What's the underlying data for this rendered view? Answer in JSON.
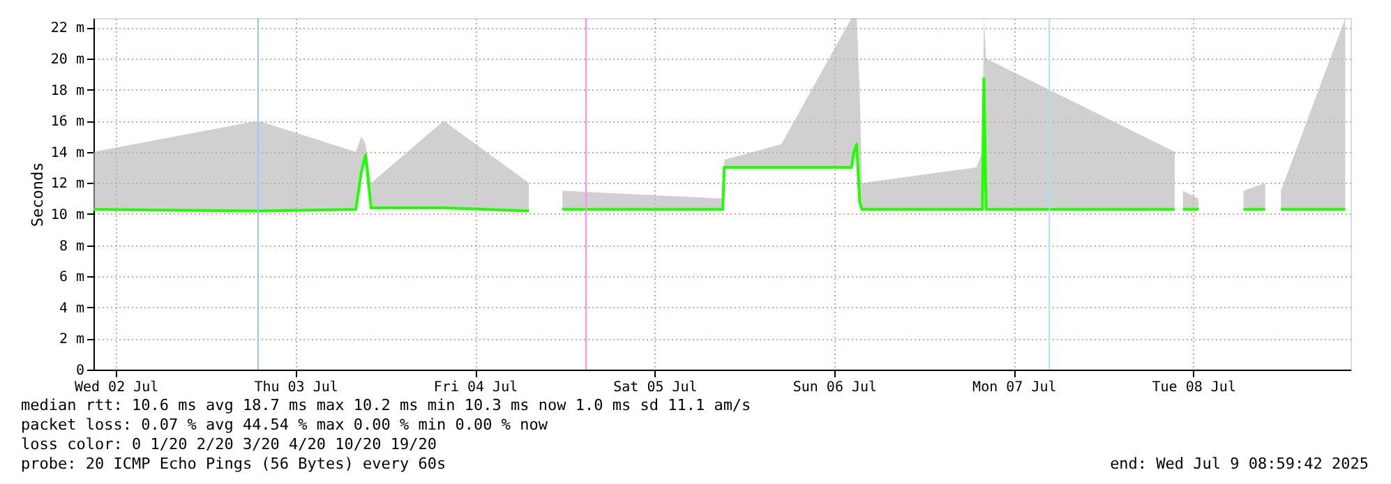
{
  "chart_data": {
    "type": "line",
    "ylabel": "Seconds",
    "x": [
      "2025-07-02T09:00",
      "2025-07-03T07:00",
      "2025-07-03T20:04",
      "2025-07-03T20:48",
      "2025-07-03T21:22",
      "2025-07-03T22:06",
      "2025-07-04T07:48",
      "2025-07-04T19:12",
      "2025-07-04T21:30",
      "2025-07-04T23:40",
      "2025-07-05T21:06",
      "2025-07-05T21:18",
      "2025-07-06T04:56",
      "2025-07-06T14:18",
      "2025-07-06T14:38",
      "2025-07-06T15:00",
      "2025-07-06T15:24",
      "2025-07-06T15:42",
      "2025-07-07T07:00",
      "2025-07-07T07:48",
      "2025-07-07T08:00",
      "2025-07-07T08:18",
      "2025-07-08T09:30",
      "2025-07-08T10:06",
      "2025-07-08T10:36",
      "2025-07-08T12:42",
      "2025-07-08T15:42",
      "2025-07-08T18:42",
      "2025-07-08T21:36",
      "2025-07-08T22:30",
      "2025-07-08T23:42",
      "2025-07-09T08:18"
    ],
    "series": [
      {
        "color": "#20ff00",
        "values": [
          10.3,
          10.2,
          10.3,
          12.7,
          13.8,
          10.4,
          10.4,
          10.2,
          null,
          10.3,
          10.3,
          13.0,
          13.0,
          13.0,
          14.0,
          14.5,
          10.8,
          10.3,
          10.3,
          10.3,
          18.7,
          10.3,
          10.3,
          null,
          10.3,
          10.3,
          null,
          10.3,
          10.3,
          null,
          10.3,
          10.3
        ],
        "lower": [
          10.3,
          10.2,
          10.3,
          12.7,
          13.8,
          10.4,
          10.4,
          10.2,
          null,
          10.3,
          10.3,
          13.0,
          13.0,
          13.0,
          14.0,
          14.5,
          10.8,
          10.3,
          10.3,
          10.3,
          18.7,
          10.3,
          10.3,
          null,
          10.3,
          10.3,
          null,
          10.3,
          10.3,
          null,
          10.3,
          10.3
        ],
        "upper": [
          14,
          16,
          14,
          15,
          14.5,
          12,
          16,
          12,
          null,
          11.5,
          11,
          13.5,
          14.5,
          22.6,
          22.6,
          22.6,
          18,
          12,
          13,
          14,
          22.6,
          20,
          14,
          null,
          11.5,
          11,
          null,
          11.5,
          12,
          null,
          11.5,
          22.6
        ]
      }
    ],
    "xlim": [
      "2025-07-02T09:00",
      "2025-07-09T09:00"
    ],
    "xticks": [
      {
        "value": "2025-07-02T12:00",
        "label": "Wed 02 Jul"
      },
      {
        "value": "2025-07-03T12:00",
        "label": "Thu 03 Jul"
      },
      {
        "value": "2025-07-04T12:00",
        "label": "Fri 04 Jul"
      },
      {
        "value": "2025-07-05T12:00",
        "label": "Sat 05 Jul"
      },
      {
        "value": "2025-07-06T12:00",
        "label": "Sun 06 Jul"
      },
      {
        "value": "2025-07-07T12:00",
        "label": "Mon 07 Jul"
      },
      {
        "value": "2025-07-08T12:00",
        "label": "Tue 08 Jul"
      }
    ],
    "ylim": [
      0,
      22.6
    ],
    "yticks": [
      0,
      {
        "value": 2,
        "label": "2 m"
      },
      {
        "value": 4,
        "label": "4 m"
      },
      {
        "value": 6,
        "label": "6 m"
      },
      {
        "value": 8,
        "label": "8 m"
      },
      {
        "value": 10,
        "label": "10 m"
      },
      {
        "value": 12,
        "label": "12 m"
      },
      {
        "value": 14,
        "label": "14 m"
      },
      {
        "value": 16,
        "label": "16 m"
      },
      {
        "value": 18,
        "label": "18 m"
      },
      {
        "value": 20,
        "label": "20 m"
      },
      {
        "value": 22,
        "label": "22 m"
      }
    ],
    "grid": true,
    "ref_lines": [
      {
        "axis": "x",
        "value": "2025-07-03T07:00",
        "color": "#99c2ff"
      },
      {
        "axis": "x",
        "value": "2025-07-05T02:50",
        "color": "#ff88ff"
      },
      {
        "axis": "x",
        "value": "2025-07-07T16:45",
        "color": "#a8e0ff"
      }
    ],
    "annotations": [
      "median rtt:  10.6 ms avg  18.7 ms max  10.2 ms min  10.3 ms now  1.0 ms sd  11.1   am/s",
      "packet loss: 0.07 % avg  44.54 % max  0.00 % min  0.00 % now",
      "loss color:  0  1/20  2/20  3/20  4/20  10/20  19/20",
      "probe:       20 ICMP Echo Pings (56 Bytes) every 60s",
      "end: Wed Jul  9 08:59:42 2025"
    ]
  }
}
